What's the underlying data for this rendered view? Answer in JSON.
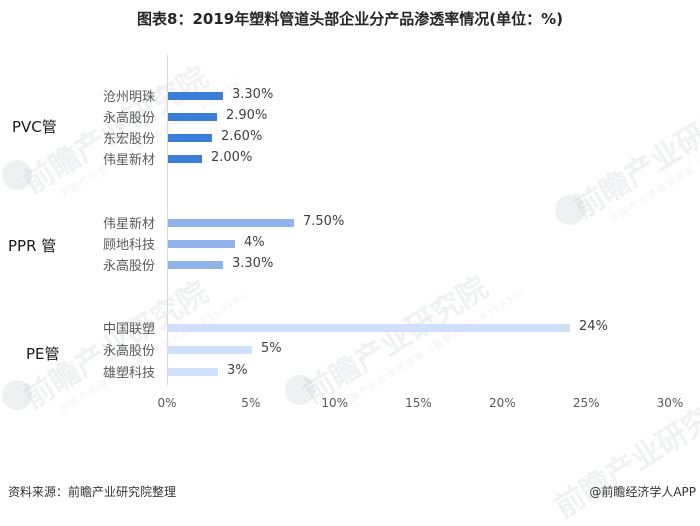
{
  "title": "图表8：2019年塑料管道头部企业分产品渗透率情况(单位：%)",
  "footer": {
    "source": "资料来源：前瞻产业研究院整理",
    "credit": "@前瞻经济学人APP"
  },
  "watermark": {
    "text": "前瞻产业研究院",
    "sub": "中国产业咨询领导者（股票代码：835999）"
  },
  "colors": {
    "pvc": "#3b7dd8",
    "ppr": "#8fb4ec",
    "pe": "#cfe1fa",
    "axis": "#d9d9d9"
  },
  "groups": [
    {
      "name": "PVC管",
      "color": "#3b7dd8",
      "items": [
        {
          "company": "沧州明珠",
          "value": 3.3,
          "label": "3.30%"
        },
        {
          "company": "永高股份",
          "value": 2.9,
          "label": "2.90%"
        },
        {
          "company": "东宏股份",
          "value": 2.6,
          "label": "2.60%"
        },
        {
          "company": "伟星新材",
          "value": 2.0,
          "label": "2.00%"
        }
      ]
    },
    {
      "name": "PPR 管",
      "color": "#8fb4ec",
      "items": [
        {
          "company": "伟星新材",
          "value": 7.5,
          "label": "7.50%"
        },
        {
          "company": "顾地科技",
          "value": 4.0,
          "label": "4%"
        },
        {
          "company": "永高股份",
          "value": 3.3,
          "label": "3.30%"
        }
      ]
    },
    {
      "name": "PE管",
      "color": "#cfe1fa",
      "items": [
        {
          "company": "中国联塑",
          "value": 24.0,
          "label": "24%"
        },
        {
          "company": "永高股份",
          "value": 5.0,
          "label": "5%"
        },
        {
          "company": "雄塑科技",
          "value": 3.0,
          "label": "3%"
        }
      ]
    }
  ],
  "x_ticks": [
    "0%",
    "5%",
    "10%",
    "15%",
    "20%",
    "25%",
    "30%"
  ],
  "chart_data": {
    "type": "bar",
    "orientation": "horizontal",
    "title": "图表8：2019年塑料管道头部企业分产品渗透率情况(单位：%)",
    "xlabel": "",
    "ylabel": "",
    "xlim": [
      0,
      30
    ],
    "x_tick_labels": [
      "0%",
      "5%",
      "10%",
      "15%",
      "20%",
      "25%",
      "30%"
    ],
    "grid": false,
    "legend": null,
    "categories": [
      "PVC管 / 沧州明珠",
      "PVC管 / 永高股份",
      "PVC管 / 东宏股份",
      "PVC管 / 伟星新材",
      "PPR 管 / 伟星新材",
      "PPR 管 / 顾地科技",
      "PPR 管 / 永高股份",
      "PE管 / 中国联塑",
      "PE管 / 永高股份",
      "PE管 / 雄塑科技"
    ],
    "series": [
      {
        "name": "PVC管",
        "values": [
          3.3,
          2.9,
          2.6,
          2.0,
          null,
          null,
          null,
          null,
          null,
          null
        ]
      },
      {
        "name": "PPR 管",
        "values": [
          null,
          null,
          null,
          null,
          7.5,
          4.0,
          3.3,
          null,
          null,
          null
        ]
      },
      {
        "name": "PE管",
        "values": [
          null,
          null,
          null,
          null,
          null,
          null,
          null,
          24.0,
          5.0,
          3.0
        ]
      }
    ],
    "data_labels": [
      "3.30%",
      "2.90%",
      "2.60%",
      "2.00%",
      "7.50%",
      "4%",
      "3.30%",
      "24%",
      "5%",
      "3%"
    ],
    "source": "资料来源：前瞻产业研究院整理"
  }
}
